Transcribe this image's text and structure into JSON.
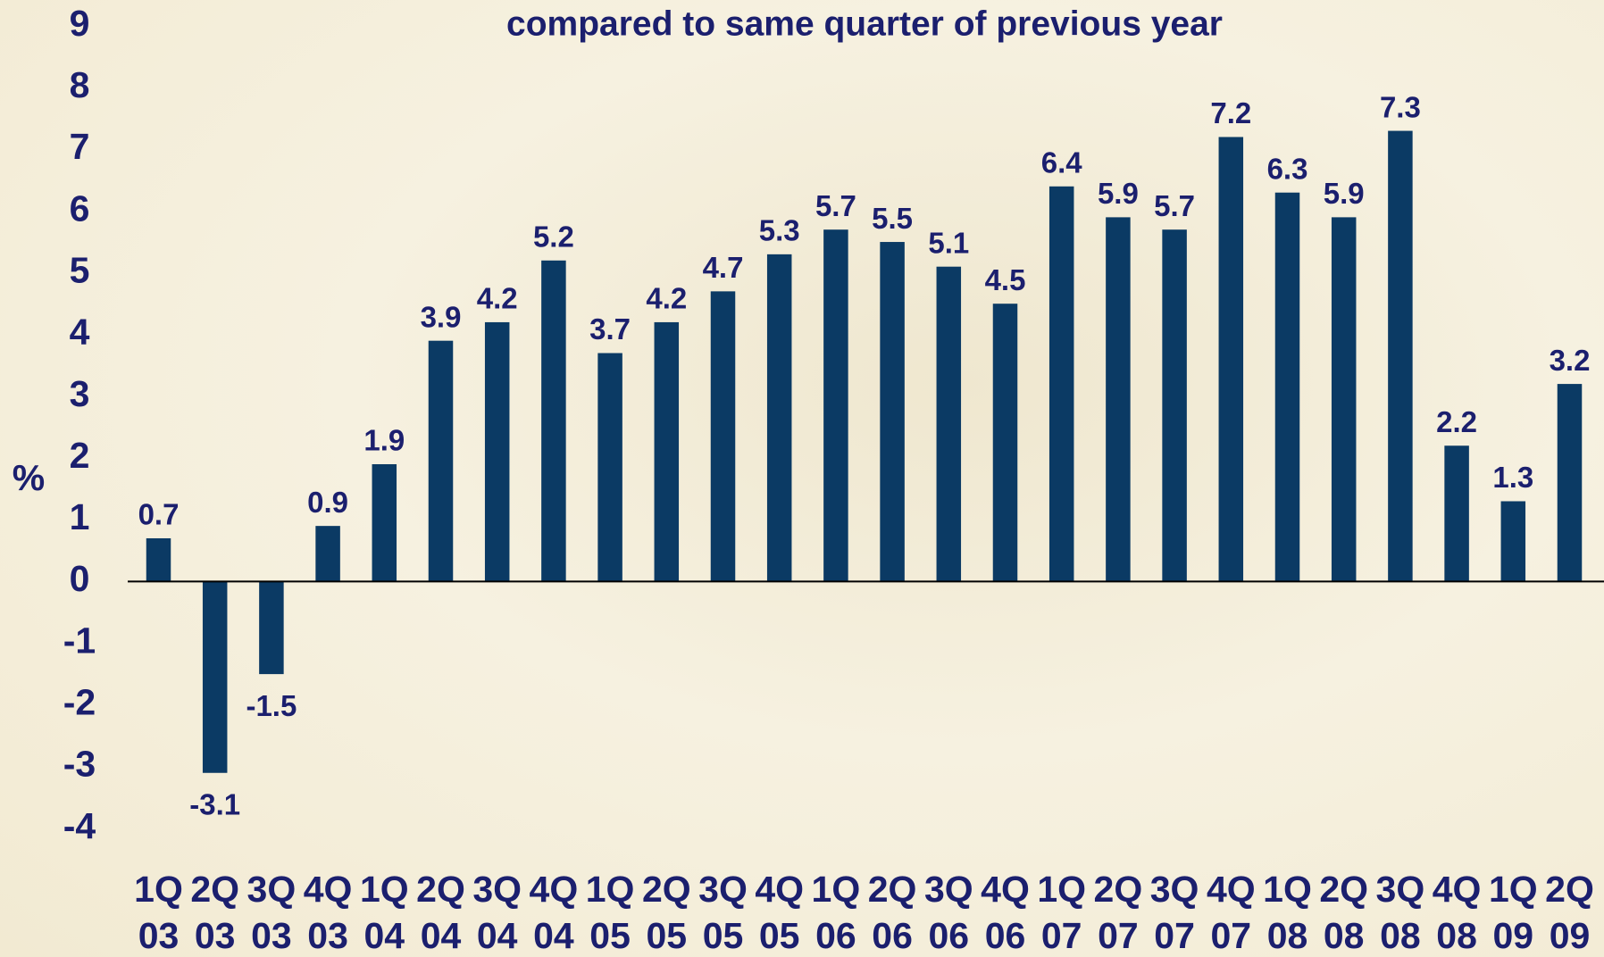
{
  "chart_data": {
    "type": "bar",
    "title": "compared to same quarter of previous year",
    "y_label": "%",
    "categories": [
      "1Q\n03",
      "2Q\n03",
      "3Q\n03",
      "4Q\n03",
      "1Q\n04",
      "2Q\n04",
      "3Q\n04",
      "4Q\n04",
      "1Q\n05",
      "2Q\n05",
      "3Q\n05",
      "4Q\n05",
      "1Q\n06",
      "2Q\n06",
      "3Q\n06",
      "4Q\n06",
      "1Q\n07",
      "2Q\n07",
      "3Q\n07",
      "4Q\n07",
      "1Q\n08",
      "2Q\n08",
      "3Q\n08",
      "4Q\n08",
      "1Q\n09",
      "2Q\n09"
    ],
    "values": [
      0.7,
      -3.1,
      -1.5,
      0.9,
      1.9,
      3.9,
      4.2,
      5.2,
      3.7,
      4.2,
      4.7,
      5.3,
      5.7,
      5.5,
      5.1,
      4.5,
      6.4,
      5.9,
      5.7,
      7.2,
      6.3,
      5.9,
      7.3,
      2.2,
      1.3,
      3.2
    ],
    "color": "#0b3a64",
    "ylim": [
      -4,
      9
    ],
    "yticks": [
      -4,
      -3,
      -2,
      -1,
      0,
      1,
      2,
      3,
      4,
      5,
      6,
      7,
      8,
      9
    ]
  }
}
